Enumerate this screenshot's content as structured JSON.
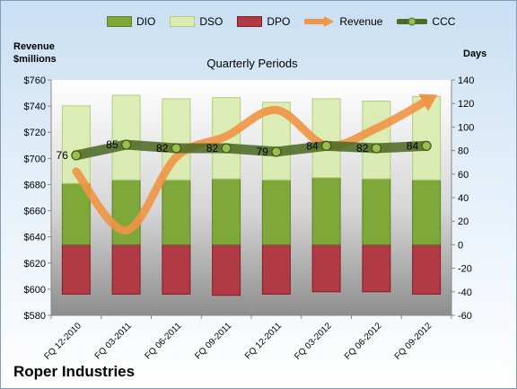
{
  "legend": [
    {
      "key": "dio",
      "label": "DIO",
      "color": "#7fa83a"
    },
    {
      "key": "dso",
      "label": "DSO",
      "color": "#d9ebb0"
    },
    {
      "key": "dpo",
      "label": "DPO",
      "color": "#b23a44"
    },
    {
      "key": "revenue",
      "label": "Revenue",
      "color": "#f09445"
    },
    {
      "key": "ccc",
      "label": "CCC",
      "color": "#4e6a24"
    }
  ],
  "company": "Roper Industries",
  "chart_data": {
    "type": "bar",
    "title": "Quarterly Periods",
    "ylabel_left": "Revenue\n$millions",
    "ylabel_right": "Days",
    "categories": [
      "FQ 12-2010",
      "FQ 03-2011",
      "FQ 06-2011",
      "FQ 09-2011",
      "FQ 12-2011",
      "FQ 03-2012",
      "FQ 06-2012",
      "FQ 09-2012"
    ],
    "ylim_left": [
      580,
      760
    ],
    "ylim_right": [
      -60,
      140
    ],
    "left_ticks": [
      "$580",
      "$600",
      "$620",
      "$640",
      "$660",
      "$680",
      "$700",
      "$720",
      "$740",
      "$760"
    ],
    "right_ticks": [
      "-60",
      "-40",
      "-20",
      "0",
      "20",
      "40",
      "60",
      "80",
      "100",
      "120",
      "140"
    ],
    "grid": false,
    "legend_position": "top",
    "series": [
      {
        "name": "DPO",
        "axis": "days",
        "values": [
          -42,
          -42,
          -42,
          -43,
          -42,
          -40,
          -40,
          -42
        ]
      },
      {
        "name": "DIO",
        "axis": "days",
        "values": [
          52,
          55,
          55,
          56,
          55,
          57,
          56,
          55
        ]
      },
      {
        "name": "DSO",
        "axis": "days",
        "values": [
          66,
          72,
          69,
          69,
          66,
          67,
          66,
          71
        ]
      },
      {
        "name": "Revenue",
        "axis": "revenue",
        "values": [
          690,
          645,
          701,
          717,
          737,
          710,
          723,
          744
        ]
      },
      {
        "name": "CCC",
        "axis": "days",
        "values": [
          76,
          85,
          82,
          82,
          79,
          84,
          82,
          84
        ]
      }
    ],
    "data_labels": [
      "76",
      "85",
      "82",
      "82",
      "79",
      "84",
      "82",
      "84"
    ]
  }
}
